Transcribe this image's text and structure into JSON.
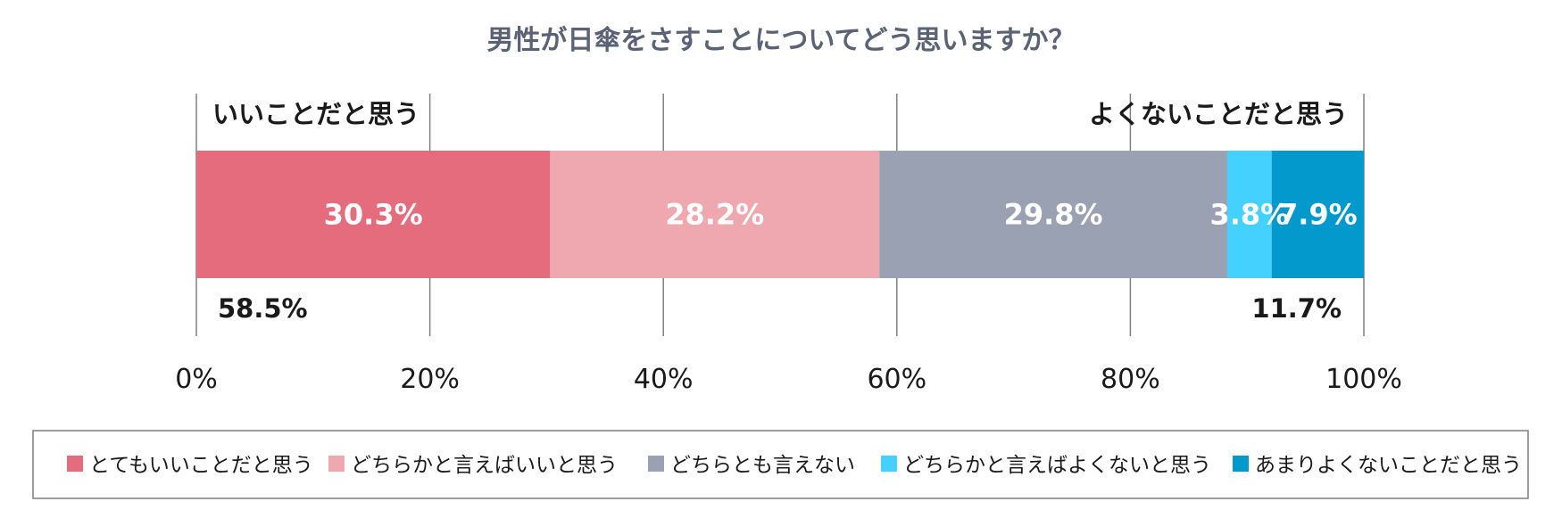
{
  "chart_data": {
    "type": "bar",
    "orientation": "horizontal",
    "stacked": true,
    "title": "男性が日傘をさすことについてどう思いますか？",
    "xlim": [
      0,
      100
    ],
    "x_ticks": [
      "0%",
      "20%",
      "40%",
      "60%",
      "80%",
      "100%"
    ],
    "x_tick_values": [
      0,
      20,
      40,
      60,
      80,
      100
    ],
    "grid": "vertical",
    "series": [
      {
        "name": "とてもいいことだと思う",
        "value": 30.3,
        "label": "30.3%",
        "color": "#e56c7d"
      },
      {
        "name": "どちらかと言えばいいと思う",
        "value": 28.2,
        "label": "28.2%",
        "color": "#efa7b0"
      },
      {
        "name": "どちらとも言えない",
        "value": 29.8,
        "label": "29.8%",
        "color": "#9aa1b2"
      },
      {
        "name": "どちらかと言えばよくないと思う",
        "value": 3.8,
        "label": "3.8%",
        "color": "#44d1fd"
      },
      {
        "name": "あまりよくないことだと思う",
        "value": 7.9,
        "label": "7.9%",
        "color": "#0399cc"
      }
    ],
    "group_labels": {
      "positive": {
        "label": "いいことだと思う",
        "total": "58.5%"
      },
      "negative": {
        "label": "よくないことだと思う",
        "total": "11.7%"
      }
    },
    "legend_position": "bottom"
  }
}
